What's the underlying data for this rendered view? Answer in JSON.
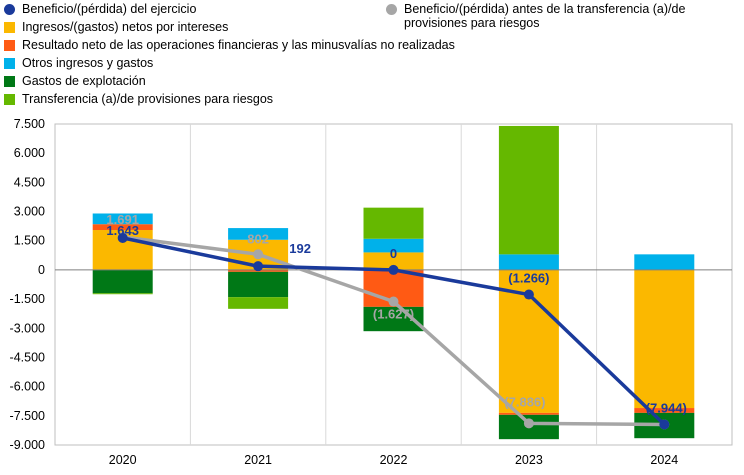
{
  "legend": [
    {
      "label": "Beneficio/(pérdida) del ejercicio",
      "color": "#1a3a9b",
      "shape": "circle"
    },
    {
      "label": "Beneficio/(pérdida) antes de la transferencia (a)/de provisiones para riesgos",
      "label_lines": [
        "Beneficio/(pérdida) antes de la transferencia (a)/de",
        "provisiones para riesgos"
      ],
      "color": "#a6a6a6",
      "shape": "circle"
    },
    {
      "label": "Ingresos/(gastos) netos por intereses",
      "color": "#fbb800",
      "shape": "square"
    },
    {
      "label": "Resultado neto de las operaciones financieras y las minusvalías no realizadas",
      "color": "#ff5a14",
      "shape": "square"
    },
    {
      "label": "Otros ingresos y gastos",
      "color": "#00b1ea",
      "shape": "square"
    },
    {
      "label": "Gastos de explotación",
      "color": "#007816",
      "shape": "square"
    },
    {
      "label": "Transferencia (a)/de provisiones para riesgos",
      "color": "#65b800",
      "shape": "square"
    }
  ],
  "chart_data": {
    "type": "bar",
    "stacked": true,
    "categories": [
      "2020",
      "2021",
      "2022",
      "2023",
      "2024"
    ],
    "ylim": [
      -9000,
      7500
    ],
    "yticks": [
      7500,
      6000,
      4500,
      3000,
      1500,
      0,
      -1500,
      -3000,
      -4500,
      -6000,
      -7500,
      -9000
    ],
    "ytick_labels": [
      "7.500",
      "6.000",
      "4.500",
      "3.000",
      "1.500",
      "0",
      "-1.500",
      "-3.000",
      "-4.500",
      "-6.000",
      "-7.500",
      "-9.000"
    ],
    "grid": "vertical separators",
    "series": [
      {
        "name": "Ingresos/(gastos) netos por intereses",
        "color": "#fbb800",
        "values": [
          2050,
          1550,
          900,
          -7350,
          -7100
        ]
      },
      {
        "name": "Resultado neto de las operaciones financieras y las minusvalías no realizadas",
        "color": "#ff5a14",
        "values": [
          300,
          -100,
          -1900,
          -100,
          -250
        ]
      },
      {
        "name": "Otros ingresos y gastos",
        "color": "#00b1ea",
        "values": [
          550,
          600,
          700,
          800,
          800
        ]
      },
      {
        "name": "Gastos de explotación",
        "color": "#007816",
        "values": [
          -1200,
          -1300,
          -1250,
          -1250,
          -1300
        ]
      },
      {
        "name": "Transferencia (a)/de provisiones para riesgos",
        "color": "#65b800",
        "values": [
          -50,
          -600,
          1600,
          6600,
          0
        ]
      }
    ],
    "lines": [
      {
        "name": "Beneficio/(pérdida) del ejercicio",
        "color": "#1a3a9b",
        "values": [
          1643,
          192,
          0,
          -1266,
          -7944
        ],
        "labels": [
          "1.643",
          "192",
          "0",
          "(1.266)",
          "(7.944)"
        ]
      },
      {
        "name": "Beneficio/(pérdida) antes de la transferencia (a)/de provisiones para riesgos",
        "color": "#a6a6a6",
        "values": [
          1691,
          802,
          -1627,
          -7886,
          -7944
        ],
        "labels": [
          "1.691",
          "802",
          "(1.627)",
          "(7.886)",
          ""
        ]
      }
    ]
  }
}
